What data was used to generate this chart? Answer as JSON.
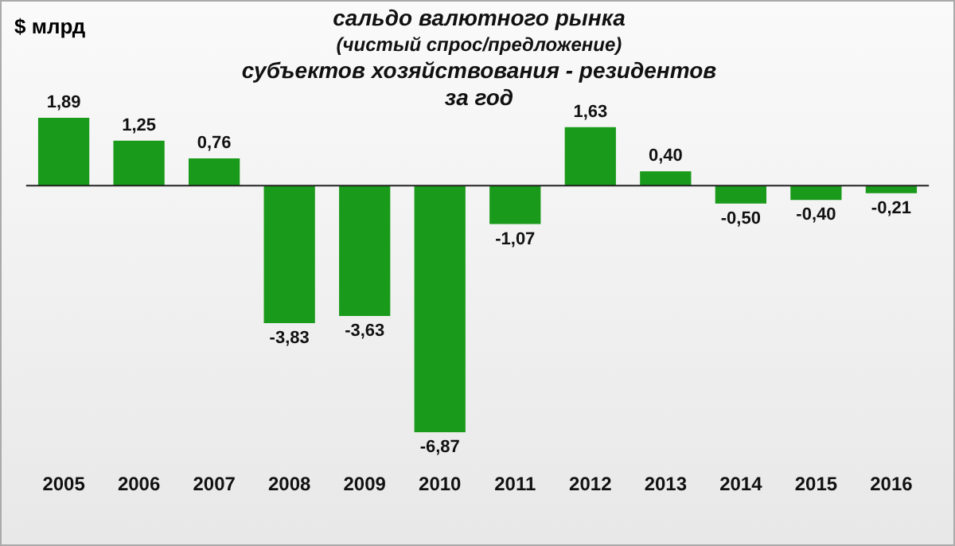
{
  "chart_data": {
    "type": "bar",
    "title": "сальдо валютного рынка\n(чистый спрос/предложение)\nсубъектов хозяйствования - резидентов\nза год",
    "ylabel": "$ млрд",
    "categories": [
      "2005",
      "2006",
      "2007",
      "2008",
      "2009",
      "2010",
      "2011",
      "2012",
      "2013",
      "2014",
      "2015",
      "2016"
    ],
    "values": [
      1.89,
      1.25,
      0.76,
      -3.83,
      -3.63,
      -6.87,
      -1.07,
      1.63,
      0.4,
      -0.5,
      -0.4,
      -0.21
    ],
    "value_labels": [
      "1,89",
      "1,25",
      "0,76",
      "-3,83",
      "-3,63",
      "-6,87",
      "-1,07",
      "1,63",
      "0,40",
      "-0,50",
      "-0,40",
      "-0,21"
    ],
    "color": "#1a9a1a",
    "grid": false,
    "legend": false
  }
}
